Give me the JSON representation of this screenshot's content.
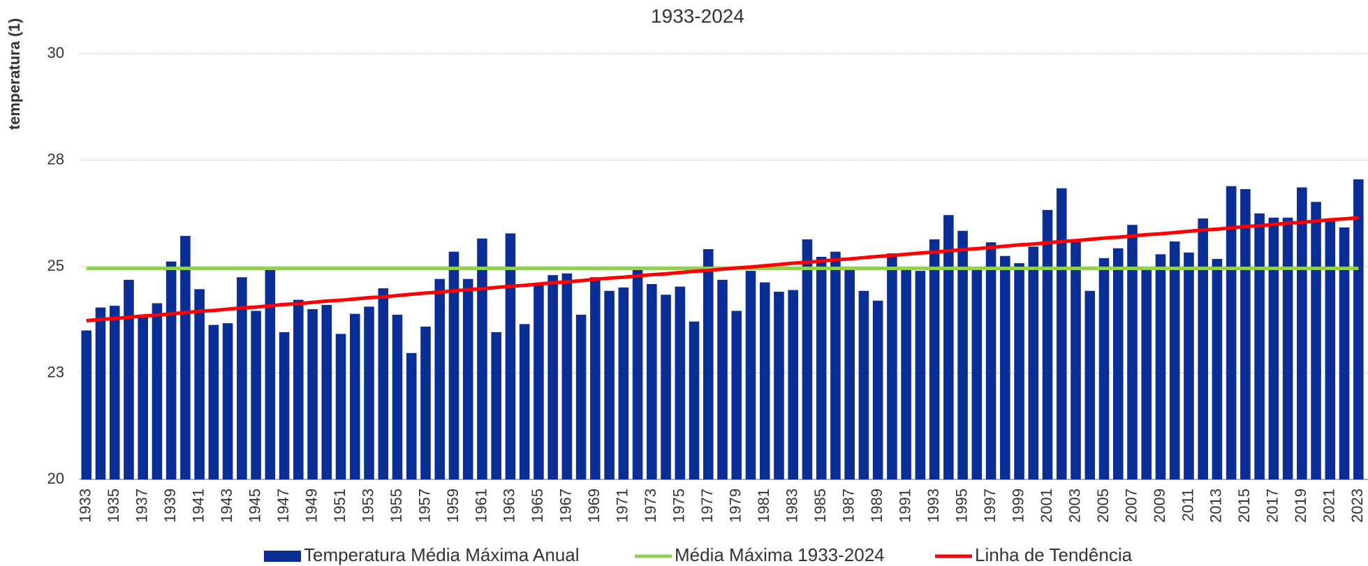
{
  "chart_data": {
    "type": "bar",
    "subtitle": "1933-2024",
    "y_label": "temperatura (1)",
    "categories": [
      "1933",
      null,
      "1935",
      null,
      "1937",
      null,
      "1939",
      null,
      "1941",
      null,
      "1943",
      null,
      "1945",
      null,
      "1947",
      null,
      "1949",
      null,
      "1951",
      null,
      "1953",
      null,
      "1955",
      null,
      "1957",
      null,
      "1959",
      null,
      "1961",
      null,
      "1963",
      null,
      "1965",
      null,
      "1967",
      null,
      "1969",
      null,
      "1971",
      null,
      "1973",
      null,
      "1975",
      null,
      "1977",
      null,
      "1979",
      null,
      "1981",
      null,
      "1983",
      null,
      "1985",
      null,
      "1987",
      null,
      "1989",
      null,
      "1991",
      null,
      "1993",
      null,
      "1995",
      null,
      "1997",
      null,
      "1999",
      null,
      "2001",
      null,
      "2003",
      null,
      "2005",
      null,
      "2007",
      null,
      "2009",
      null,
      "2011",
      null,
      "2013",
      null,
      "2015",
      null,
      "2017",
      null,
      "2019",
      null,
      "2021",
      null,
      "2023"
    ],
    "series": [
      {
        "name": "Temperatura Média Máxima Anual",
        "type": "bar",
        "color": "#0b2d96",
        "values": [
          23.5,
          24.04,
          24.08,
          24.69,
          23.85,
          24.14,
          25.12,
          25.72,
          24.47,
          23.63,
          23.67,
          24.75,
          23.96,
          24.96,
          23.46,
          24.22,
          24.0,
          24.1,
          23.42,
          23.89,
          24.06,
          24.49,
          23.87,
          22.97,
          23.59,
          24.71,
          25.35,
          24.71,
          25.66,
          23.46,
          25.78,
          23.65,
          24.59,
          24.8,
          24.84,
          23.87,
          24.75,
          24.43,
          24.51,
          24.92,
          24.59,
          24.34,
          24.53,
          23.71,
          25.41,
          24.69,
          23.96,
          24.9,
          24.63,
          24.41,
          24.45,
          25.64,
          25.23,
          25.35,
          24.94,
          24.43,
          24.2,
          25.31,
          25.0,
          24.9,
          25.64,
          26.21,
          25.84,
          24.96,
          25.57,
          25.25,
          25.08,
          25.47,
          26.33,
          26.84,
          25.61,
          24.43,
          25.2,
          25.43,
          25.98,
          24.96,
          25.29,
          25.59,
          25.33,
          26.13,
          25.18,
          26.89,
          26.82,
          26.25,
          26.15,
          26.15,
          26.86,
          26.52,
          26.11,
          25.92,
          27.05
        ]
      },
      {
        "name": "Média Máxima 1933-2024",
        "type": "line",
        "color": "#92d050",
        "values": [
          24.96,
          24.96,
          24.96,
          24.96,
          24.96,
          24.96,
          24.96,
          24.96,
          24.96,
          24.96,
          24.96,
          24.96,
          24.96,
          24.96,
          24.96,
          24.96,
          24.96,
          24.96,
          24.96,
          24.96,
          24.96,
          24.96,
          24.96,
          24.96,
          24.96,
          24.96,
          24.96,
          24.96,
          24.96,
          24.96,
          24.96,
          24.96,
          24.96,
          24.96,
          24.96,
          24.96,
          24.96,
          24.96,
          24.96,
          24.96,
          24.96,
          24.96,
          24.96,
          24.96,
          24.96,
          24.96,
          24.96,
          24.96,
          24.96,
          24.96,
          24.96,
          24.96,
          24.96,
          24.96,
          24.96,
          24.96,
          24.96,
          24.96,
          24.96,
          24.96,
          24.96,
          24.96,
          24.96,
          24.96,
          24.96,
          24.96,
          24.96,
          24.96,
          24.96,
          24.96,
          24.96,
          24.96,
          24.96,
          24.96,
          24.96,
          24.96,
          24.96,
          24.96,
          24.96,
          24.96,
          24.96,
          24.96,
          24.96,
          24.96,
          24.96,
          24.96,
          24.96,
          24.96,
          24.96,
          24.96,
          24.96
        ]
      },
      {
        "name": "Linha de Tendência",
        "type": "line",
        "color": "#ff0000",
        "values": [
          23.73,
          23.76,
          23.78,
          23.81,
          23.84,
          23.86,
          23.89,
          23.92,
          23.95,
          23.97,
          24.0,
          24.03,
          24.05,
          24.08,
          24.11,
          24.13,
          24.16,
          24.19,
          24.21,
          24.24,
          24.27,
          24.29,
          24.32,
          24.35,
          24.38,
          24.4,
          24.43,
          24.46,
          24.48,
          24.51,
          24.54,
          24.56,
          24.59,
          24.62,
          24.64,
          24.67,
          24.7,
          24.73,
          24.75,
          24.78,
          24.81,
          24.83,
          24.86,
          24.89,
          24.91,
          24.94,
          24.97,
          24.99,
          25.02,
          25.05,
          25.08,
          25.1,
          25.13,
          25.16,
          25.18,
          25.21,
          25.24,
          25.26,
          25.29,
          25.32,
          25.34,
          25.37,
          25.4,
          25.42,
          25.45,
          25.48,
          25.51,
          25.53,
          25.56,
          25.59,
          25.61,
          25.64,
          25.67,
          25.69,
          25.72,
          25.75,
          25.77,
          25.8,
          25.83,
          25.86,
          25.88,
          25.91,
          25.94,
          25.96,
          25.99,
          26.02,
          26.04,
          26.07,
          26.1,
          26.12,
          26.15
        ]
      }
    ],
    "ylim": [
      20,
      30
    ],
    "yticks": [
      20,
      {
        "value": 22.5,
        "label": "23"
      },
      25,
      {
        "value": 27.5,
        "label": "28"
      },
      30
    ],
    "grid": true,
    "legend": "bottom"
  }
}
